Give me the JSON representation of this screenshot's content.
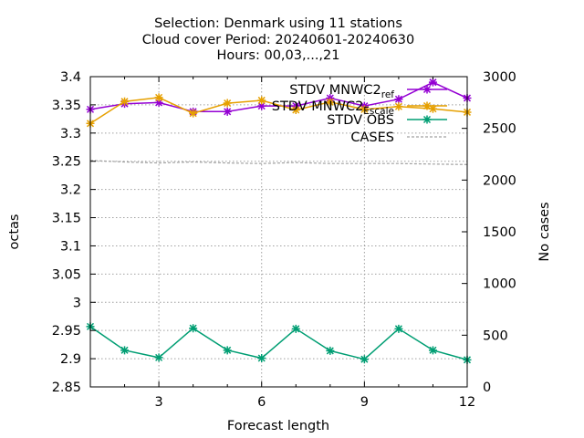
{
  "chart_data": {
    "type": "line",
    "title_lines": [
      "Selection: Denmark using     11 stations",
      "Cloud cover   Period: 20240601-20240630",
      "Hours: 00,03,...,21"
    ],
    "xlabel": "Forecast length",
    "ylabel": "octas",
    "y2label": "No cases",
    "xlim": [
      1,
      12
    ],
    "ylim": [
      2.85,
      3.4
    ],
    "y2lim": [
      0,
      3000
    ],
    "xticks": [
      3,
      6,
      9,
      12
    ],
    "yticks": [
      2.85,
      2.9,
      2.95,
      3,
      3.05,
      3.1,
      3.15,
      3.2,
      3.25,
      3.3,
      3.35,
      3.4
    ],
    "ytick_labels": [
      "2.85",
      "2.9",
      "2.95",
      "3",
      "3.05",
      "3.1",
      "3.15",
      "3.2",
      "3.25",
      "3.3",
      "3.35",
      "3.4"
    ],
    "y2ticks": [
      0,
      500,
      1000,
      1500,
      2000,
      2500,
      3000
    ],
    "grid": true,
    "legend_position": "top-right",
    "x": [
      1,
      2,
      3,
      4,
      5,
      6,
      7,
      8,
      9,
      10,
      11,
      12
    ],
    "series": [
      {
        "name": "STDV MNWC2_ref",
        "legend_main": "STDV MNWC2",
        "legend_sub": "ref",
        "color": "#9400d3",
        "marker": "x",
        "axis": "y1",
        "values": [
          3.342,
          3.352,
          3.354,
          3.338,
          3.338,
          3.348,
          3.348,
          3.362,
          3.348,
          3.36,
          3.39,
          3.362
        ]
      },
      {
        "name": "STDV MNWC2_Escale",
        "legend_main": "STDV MNWC2",
        "legend_sub": "Escale",
        "color": "#e6a000",
        "marker": "x",
        "axis": "y1",
        "values": [
          3.317,
          3.356,
          3.363,
          3.335,
          3.353,
          3.358,
          3.341,
          3.355,
          3.342,
          3.347,
          3.343,
          3.337
        ]
      },
      {
        "name": "STDV OBS",
        "legend_main": "STDV OBS",
        "legend_sub": "",
        "color": "#009e73",
        "marker": "x",
        "axis": "y1",
        "values": [
          2.957,
          2.915,
          2.902,
          2.954,
          2.915,
          2.901,
          2.953,
          2.914,
          2.899,
          2.953,
          2.915,
          2.898
        ]
      },
      {
        "name": "CASES",
        "legend_main": "CASES",
        "legend_sub": "",
        "color": "#a0a0a0",
        "marker": "none",
        "dashed": true,
        "axis": "y2",
        "values": [
          2190,
          2175,
          2165,
          2175,
          2165,
          2160,
          2170,
          2160,
          2160,
          2160,
          2155,
          2150
        ]
      }
    ]
  }
}
